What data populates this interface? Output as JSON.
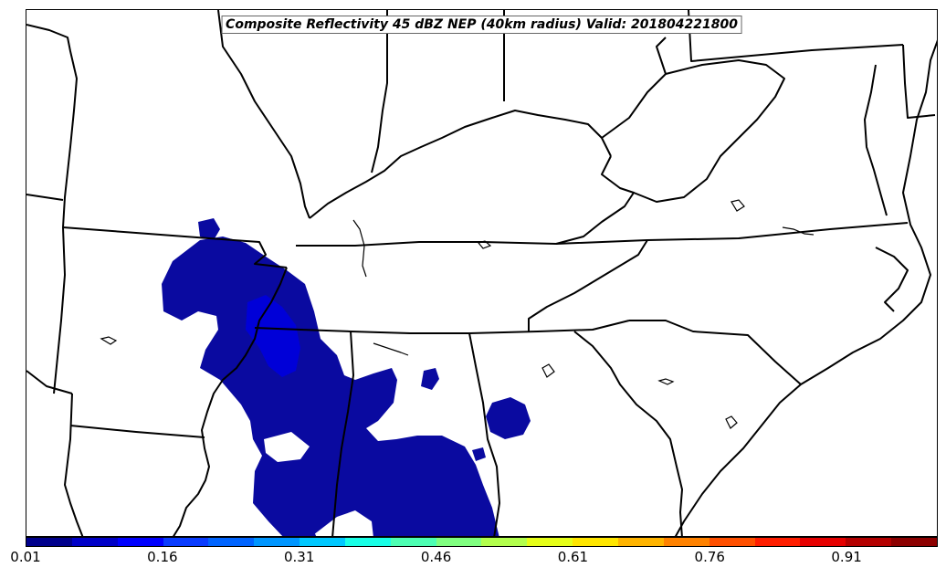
{
  "map": {
    "title": "Composite Reflectivity 45 dBZ NEP (40km radius) Valid: 201804221800",
    "region": "southeastern-united-states",
    "boundary_color": "#000000",
    "shading_colors": {
      "low": "#0a0aa0",
      "mid": "#0000d8"
    }
  },
  "colorbar": {
    "colors": [
      "#00008c",
      "#0000c8",
      "#0000ff",
      "#0a3cff",
      "#0064ff",
      "#0096ff",
      "#00c8ff",
      "#19ffe6",
      "#4dffb3",
      "#80ff80",
      "#b3ff4d",
      "#e6ff19",
      "#ffe600",
      "#ffb400",
      "#ff8200",
      "#ff5000",
      "#ff1e00",
      "#e60000",
      "#b40000",
      "#8c0000"
    ],
    "ticks": [
      "0.01",
      "0.16",
      "0.31",
      "0.46",
      "0.61",
      "0.76",
      "0.91"
    ]
  }
}
